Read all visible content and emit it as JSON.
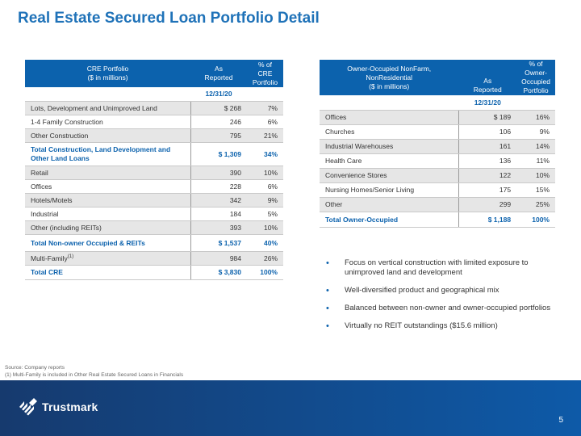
{
  "title": "Real Estate Secured Loan Portfolio Detail",
  "cre_table": {
    "header": {
      "col1": [
        "CRE Portfolio",
        "($ in millions)"
      ],
      "col2": [
        "As",
        "Reported"
      ],
      "col3": [
        "% of CRE",
        "Portfolio"
      ]
    },
    "date": "12/31/20",
    "rows": [
      {
        "label": "Lots, Development and Unimproved Land",
        "value": "$ 268",
        "pct": "7%"
      },
      {
        "label": "1-4 Family Construction",
        "value": "246",
        "pct": "6%"
      },
      {
        "label": "Other Construction",
        "value": "795",
        "pct": "21%"
      },
      {
        "label": "Total Construction, Land Development and Other Land Loans",
        "value": "$ 1,309",
        "pct": "34%"
      },
      {
        "label": "Retail",
        "value": "390",
        "pct": "10%"
      },
      {
        "label": "Offices",
        "value": "228",
        "pct": "6%"
      },
      {
        "label": "Hotels/Motels",
        "value": "342",
        "pct": "9%"
      },
      {
        "label": "Industrial",
        "value": "184",
        "pct": "5%"
      },
      {
        "label": "Other (including REITs)",
        "value": "393",
        "pct": "10%"
      },
      {
        "label": "Total Non-owner Occupied & REITs",
        "value": "$ 1,537",
        "pct": "40%"
      },
      {
        "label": "Multi-Family",
        "sup": "(1)",
        "value": "984",
        "pct": "26%"
      },
      {
        "label": "Total CRE",
        "value": "$ 3,830",
        "pct": "100%"
      }
    ]
  },
  "oo_table": {
    "header": {
      "col1": [
        "Owner-Occupied NonFarm,",
        "NonResidential",
        "($ in millions)"
      ],
      "col2": [
        "As",
        "Reported"
      ],
      "col3": [
        "% of Owner-",
        "Occupied",
        "Portfolio"
      ]
    },
    "date": "12/31/20",
    "rows": [
      {
        "label": "Offices",
        "value": "$ 189",
        "pct": "16%"
      },
      {
        "label": "Churches",
        "value": "106",
        "pct": "9%"
      },
      {
        "label": "Industrial Warehouses",
        "value": "161",
        "pct": "14%"
      },
      {
        "label": "Health Care",
        "value": "136",
        "pct": "11%"
      },
      {
        "label": "Convenience Stores",
        "value": "122",
        "pct": "10%"
      },
      {
        "label": "Nursing Homes/Senior Living",
        "value": "175",
        "pct": "15%"
      },
      {
        "label": "Other",
        "value": "299",
        "pct": "25%"
      },
      {
        "label": "Total Owner-Occupied",
        "value": "$ 1,188",
        "pct": "100%"
      }
    ]
  },
  "bullets": [
    "Focus on vertical construction with limited exposure to unimproved land and development",
    "Well-diversified product and geographical mix",
    "Balanced between non-owner and owner-occupied portfolios",
    "Virtually no REIT outstandings ($15.6 million)"
  ],
  "footnotes": {
    "source": "Source: Company reports",
    "note1": "(1) Multi-Family is included in Other Real Estate Secured Loans in Financials"
  },
  "brand": {
    "name": "Trustmark"
  },
  "page_number": "5"
}
